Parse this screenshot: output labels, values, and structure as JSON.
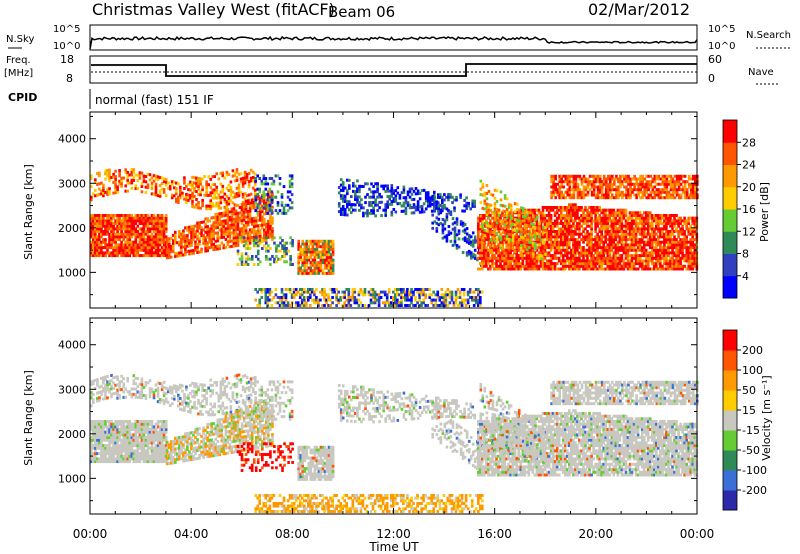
{
  "header": {
    "title": "Christmas Valley West (fitACF)",
    "beam": "Beam 06",
    "date": "02/Mar/2012"
  },
  "top_panels": {
    "nsky_label": "N.Sky",
    "nsearch_label": "N.Search",
    "nsky_ticks": [
      "10^5",
      "10^0"
    ],
    "freq_label_1": "Freq.",
    "freq_label_2": "[MHz]",
    "freq_ticks": [
      "18",
      "8"
    ],
    "nave_label": "Nave",
    "nave_ticks": [
      "60",
      "0"
    ],
    "cpid_label": "CPID",
    "cpid_text": "normal (fast) 151 IF"
  },
  "chart_data": [
    {
      "type": "heatmap",
      "name": "power",
      "ylabel": "Slant Range [km]",
      "yticks": [
        "4000",
        "3000",
        "2000",
        "1000"
      ],
      "ylim": [
        200,
        4600
      ],
      "colorbar_label": "Power [dB]",
      "colorbar_ticks": [
        "28",
        "24",
        "20",
        "16",
        "12",
        "8",
        "4"
      ],
      "colors": [
        "#0000ff",
        "#3040c0",
        "#2e8b57",
        "#66cc33",
        "#ffcc00",
        "#ff9900",
        "#ff5500",
        "#ff0000"
      ]
    },
    {
      "type": "heatmap",
      "name": "velocity",
      "ylabel": "Slant Range [km]",
      "yticks": [
        "4000",
        "3000",
        "2000",
        "1000"
      ],
      "ylim": [
        200,
        4600
      ],
      "colorbar_label": "Velocity [m s⁻¹]",
      "colorbar_ticks": [
        "200",
        "100",
        "50",
        "15",
        "-15",
        "-50",
        "-100",
        "-200"
      ],
      "colors": [
        "#2a2aa8",
        "#3a6fd8",
        "#2e8b57",
        "#66cc33",
        "#c8c8c0",
        "#ffcc00",
        "#ff9900",
        "#ff5500",
        "#ff0000"
      ]
    }
  ],
  "x_axis": {
    "label": "Time UT",
    "ticks": [
      "00:00",
      "04:00",
      "08:00",
      "12:00",
      "16:00",
      "20:00",
      "00:00"
    ]
  }
}
